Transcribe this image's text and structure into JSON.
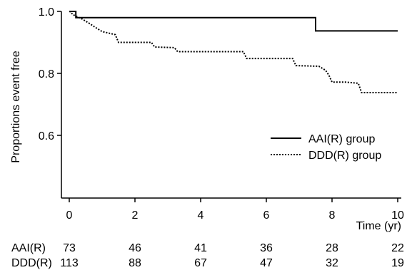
{
  "chart_data": {
    "type": "line",
    "title": "",
    "xlabel": "Time (yr)",
    "ylabel": "Proportions event free",
    "xlim": [
      0,
      10
    ],
    "ylim": [
      0.4,
      1.0
    ],
    "xticks": [
      "0",
      "2",
      "4",
      "6",
      "8",
      "10"
    ],
    "yticks": [
      "1.0",
      "0.8",
      "0.6"
    ],
    "grid": false,
    "legend_position": "right",
    "series": [
      {
        "name": "AAI(R) group",
        "style": "solid",
        "points": [
          [
            0,
            1.0
          ],
          [
            0.2,
            1.0
          ],
          [
            0.2,
            0.98
          ],
          [
            7.5,
            0.98
          ],
          [
            7.5,
            0.937
          ],
          [
            10,
            0.937
          ]
        ]
      },
      {
        "name": "DDD(R) group",
        "style": "dotted",
        "points": [
          [
            0,
            1.0
          ],
          [
            0.05,
            0.998
          ],
          [
            0.1,
            0.99
          ],
          [
            0.2,
            0.985
          ],
          [
            0.4,
            0.975
          ],
          [
            0.6,
            0.962
          ],
          [
            0.8,
            0.948
          ],
          [
            1.0,
            0.935
          ],
          [
            1.4,
            0.925
          ],
          [
            1.5,
            0.9
          ],
          [
            2.5,
            0.9
          ],
          [
            2.6,
            0.885
          ],
          [
            3.2,
            0.883
          ],
          [
            3.3,
            0.87
          ],
          [
            5.3,
            0.87
          ],
          [
            5.4,
            0.848
          ],
          [
            6.8,
            0.848
          ],
          [
            6.9,
            0.825
          ],
          [
            7.6,
            0.823
          ],
          [
            7.8,
            0.81
          ],
          [
            7.9,
            0.795
          ],
          [
            8.0,
            0.772
          ],
          [
            8.4,
            0.772
          ],
          [
            8.8,
            0.768
          ],
          [
            8.9,
            0.738
          ],
          [
            10,
            0.738
          ]
        ]
      }
    ]
  },
  "risk_table": {
    "rows": [
      {
        "label": "AAI(R)",
        "values": [
          "73",
          "46",
          "41",
          "36",
          "28",
          "22"
        ]
      },
      {
        "label": "DDD(R)",
        "values": [
          "113",
          "88",
          "67",
          "47",
          "32",
          "19"
        ]
      }
    ]
  }
}
